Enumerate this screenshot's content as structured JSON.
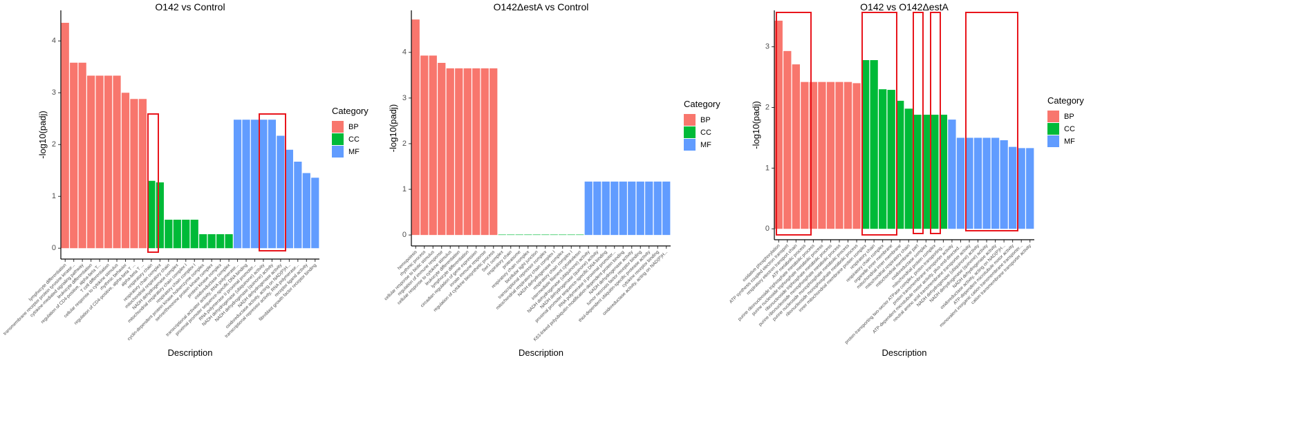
{
  "chart_data": [
    {
      "type": "bar",
      "title": "O142 vs Control",
      "x_label": "Description",
      "y_label": "-log10(padj)",
      "legend_title": "Category",
      "ylim": [
        -0.21,
        4.59
      ],
      "yticks": [
        0,
        1,
        2,
        3,
        4
      ],
      "series": [
        {
          "name": "BP",
          "color": "#F8766D",
          "categories": [
            "lymphocyte differentiation",
            "transmembrane receptor protein tyrosine kinase...",
            "cytokine-mediated signaling pathway",
            "leukocyte differentiation",
            "regulation of CD4-positive, alpha-beta T...",
            "T cell differentiation",
            "cellular response to cytokine stimulus",
            "rhythmic behavior",
            "regulation of CD4-positive, alpha-beta T ...",
            "alpha-beta T ..."
          ],
          "values": [
            4.35,
            3.58,
            3.58,
            3.33,
            3.33,
            3.33,
            3.33,
            3.0,
            2.88,
            2.88
          ]
        },
        {
          "name": "CC",
          "color": "#00BA38",
          "categories": [
            "respiratory chain",
            "respiratory chain complex",
            "mitochondrial respiratory chain",
            "NADH dehydrogenase complex",
            "mitochondrial respiratory chain complex I",
            "respiratory chain complex I",
            "cyclin-dependent protein kinase holoenzyme complex",
            "serine/threonine protein kinase complex",
            "protein kinase complex",
            "oxidoreductase complex"
          ],
          "values": [
            1.3,
            1.27,
            0.55,
            0.55,
            0.55,
            0.55,
            0.27,
            0.27,
            0.27,
            0.27
          ]
        },
        {
          "name": "MF",
          "color": "#619CFF",
          "categories": [
            "transcriptional activator activity, RNA polymerase...",
            "proximal promoter sequence-specific DNA binding",
            "RNA polymerase II proximal promoter...",
            "NADH dehydrogenase (ubiquinone) activity",
            "NADH dehydrogenase (quinone) activity",
            "NADH dehydrogenase activity",
            "oxidoreductase activity, acting on NAD(P)H...",
            "transcriptional repressor activity, RNA polymerase...",
            "receptor ligand activity",
            "fibroblast growth factor receptor binding"
          ],
          "values": [
            2.48,
            2.48,
            2.48,
            2.48,
            2.48,
            2.17,
            1.9,
            1.67,
            1.45,
            1.36
          ]
        }
      ]
    },
    {
      "type": "bar",
      "title": "O142ΔestA vs Control",
      "x_label": "Description",
      "y_label": "-log10(padj)",
      "legend_title": "Category",
      "ylim": [
        -0.24,
        4.92
      ],
      "yticks": [
        0,
        1,
        2,
        3,
        4
      ],
      "series": [
        {
          "name": "BP",
          "color": "#F8766D",
          "categories": [
            "hemopoiesis",
            "rhythmic process",
            "cellular response to biotic stimulus",
            "regulation of immune response",
            "cellular response to cytokine stimulus",
            "leukocyte differentiation",
            "lymphocyte differentiation",
            "circadian regulation of gene expression",
            "innate immune response",
            "regulation of cytokine biosynthetic process"
          ],
          "values": [
            4.72,
            3.93,
            3.93,
            3.77,
            3.65,
            3.65,
            3.65,
            3.65,
            3.65,
            3.65
          ]
        },
        {
          "name": "CC",
          "color": "#00BA38",
          "categories": [
            "Swr1 complex",
            "respiratory chain",
            "proteasome",
            "respiratory chain complex",
            "bicellular tight junction",
            "transcriptional repressor complex",
            "mitochondrial respiratory chain complex I",
            "NADH dehydrogenase complex",
            "respiratory chain complex I",
            "intermediate filament cytoskeleton"
          ],
          "values": [
            0.01,
            0.01,
            0.01,
            0.01,
            0.01,
            0.01,
            0.01,
            0.01,
            0.01,
            0.01
          ]
        },
        {
          "name": "MF",
          "color": "#619CFF",
          "categories": [
            "NADH dehydrogenase (ubiquinone) activity",
            "NADH dehydrogenase (quinone) activity",
            "proximal promoter sequence-specific DNA binding",
            "RNA polymerase II proximal promoter...",
            "K63-linked polyubiquitin modification-dependent protein binding",
            "NADH dehydrogenase activity",
            "tumor necrosis factor receptor binding",
            "thiol-dependent ubiquitin-specific protease activity",
            "cytokine receptor binding",
            "oxidoreductase activity, acting on NAD(P)H..."
          ],
          "values": [
            1.17,
            1.17,
            1.17,
            1.17,
            1.17,
            1.17,
            1.17,
            1.17,
            1.17,
            1.17
          ]
        }
      ]
    },
    {
      "type": "bar",
      "title": "O142 vs O142ΔestA",
      "x_label": "Description",
      "y_label": "-log10(padj)",
      "legend_title": "Category",
      "ylim": [
        -0.18,
        3.6
      ],
      "yticks": [
        0,
        1,
        2,
        3
      ],
      "series": [
        {
          "name": "BP",
          "color": "#F8766D",
          "categories": [
            "oxidative phosphorylation",
            "ATP synthesis coupled electron transport",
            "respiratory electron transport chain",
            "ATP metabolic process",
            "purine ribonucleoside triphosphate metabolic process",
            "purine nucleoside triphosphate metabolic process",
            "ribonucleoside triphosphate metabolic process",
            "purine ribonucleoside monophosphate metabolic process",
            "purine nucleoside monophosphate metabolic process",
            "ribonucleoside monophosphate metabolic process"
          ],
          "values": [
            3.43,
            2.93,
            2.71,
            2.42,
            2.42,
            2.42,
            2.42,
            2.42,
            2.42,
            2.4
          ]
        },
        {
          "name": "CC",
          "color": "#00BA38",
          "categories": [
            "inner mitochondrial membrane protein complex",
            "respiratory chain",
            "respiratory chain complex",
            "organelle inner membrane",
            "mitochondrial inner membrane",
            "mitochondrial respiratory chain",
            "mitochondrial membrane part",
            "oxidoreductase complex",
            "mitochondrial protein complex",
            "proton-transporting two-sector ATPase complex, proton-transporting..."
          ],
          "values": [
            2.78,
            2.78,
            2.3,
            2.29,
            2.11,
            1.98,
            1.88,
            1.88,
            1.88,
            1.88
          ]
        },
        {
          "name": "MF",
          "color": "#619CFF",
          "categories": [
            "proton transmembrane transporter activity",
            "ATP-dependent microtubule motor activity, plus-end-directed...",
            "neutral amino acid transmembrane transporter activity",
            "NADH dehydrogenase (ubiquinone) activity",
            "NADH dehydrogenase (quinone) activity",
            "NADH dehydrogenase activity",
            "oxidoreductase activity, acting on NAD(P)H...",
            "ATP-dependent microtubule motor activity",
            "monovalent inorganic cation transmembrane transporter...",
            "cation transmembrane transporter activity"
          ],
          "values": [
            1.8,
            1.5,
            1.5,
            1.5,
            1.5,
            1.5,
            1.46,
            1.35,
            1.33,
            1.33
          ]
        }
      ]
    }
  ]
}
